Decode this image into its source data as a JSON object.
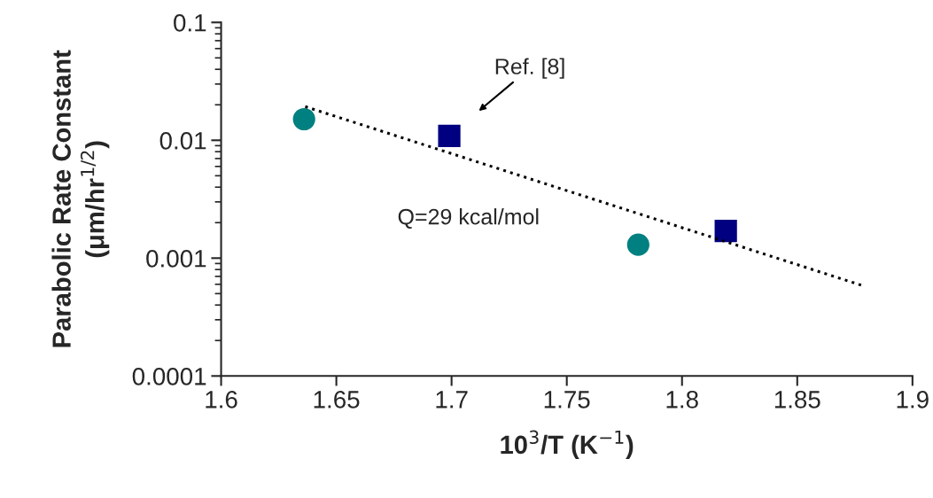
{
  "chart_data": {
    "type": "scatter",
    "xlabel": "10$^{3}$/T (K$^{−1}$)",
    "ylabel": "Parabolic Rate Constant\n(μm/hr$^{1/2}$)",
    "log": "y",
    "xlim": [
      1.6,
      1.9
    ],
    "xticks": [
      1.6,
      1.65,
      1.7,
      1.75,
      1.8,
      1.85,
      1.9
    ],
    "ylim": [
      0.0001,
      0.1
    ],
    "yticks": [
      0.0001,
      0.001,
      0.01,
      0.1
    ],
    "grid": false,
    "legend": false,
    "series": [
      {
        "marker": "circle",
        "color": "#008080",
        "x": [
          1.636,
          1.781
        ],
        "values": [
          0.0151,
          0.0013
        ]
      },
      {
        "marker": "square",
        "color": "#000080",
        "x": [
          1.699,
          1.819
        ],
        "values": [
          0.0109,
          0.0017
        ]
      },
      {
        "type": "line",
        "marker": "none",
        "line_style": "dotted",
        "color": "#000000",
        "x": [
          1.6365,
          1.8777
        ],
        "values": [
          0.0193,
          0.00059
        ]
      }
    ],
    "annotations": [
      "Ref. [8]",
      "Q=29 kcal/mol"
    ]
  }
}
